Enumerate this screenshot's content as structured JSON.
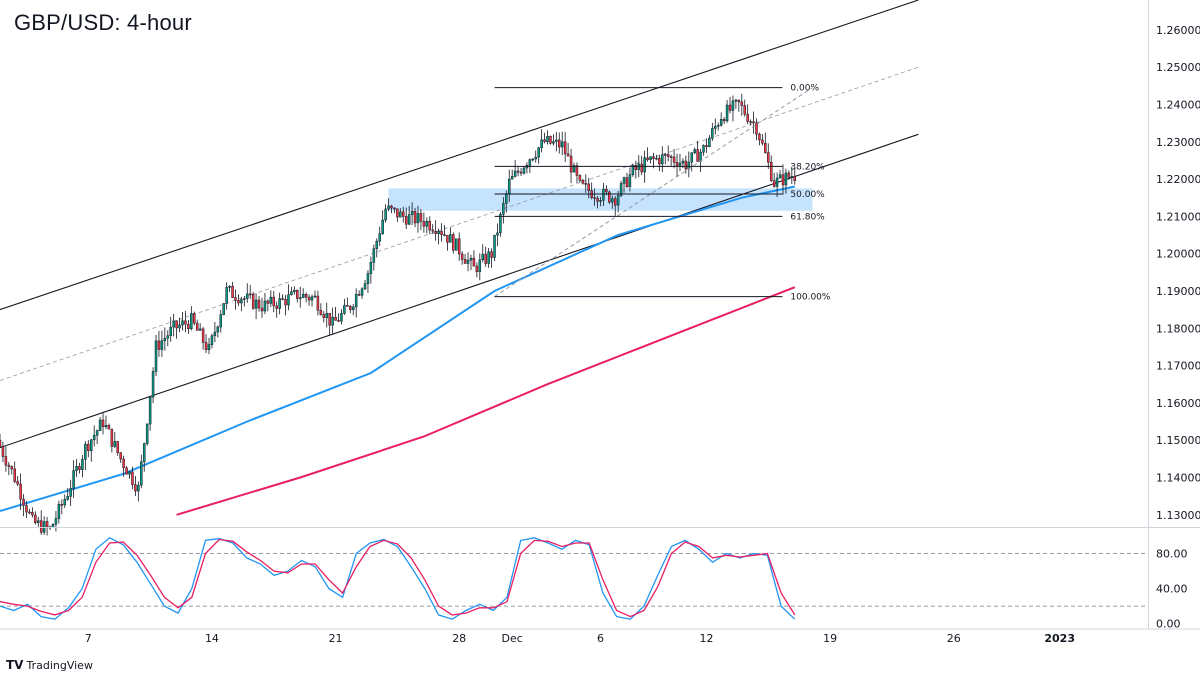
{
  "header": {
    "title": "GBP/USD: 4-hour"
  },
  "brand": {
    "logo": "TV",
    "name": "TradingView"
  },
  "colors": {
    "bull": "#089981",
    "bear": "#f23645",
    "ma_fast": "#2196f3",
    "ma_slow": "#e91e63",
    "stoch_k": "#2196f3",
    "stoch_d": "#e91e63",
    "zone": "#bbdefb",
    "channel": "#131722"
  },
  "chart_data": [
    {
      "type": "candlestick",
      "title": "GBP/USD: 4-hour",
      "ylim": [
        1.127,
        1.268
      ],
      "y_ticks": [
        "1.26000",
        "1.25000",
        "1.24000",
        "1.23000",
        "1.22000",
        "1.21000",
        "1.20000",
        "1.19000",
        "1.18000",
        "1.17000",
        "1.16000",
        "1.15000",
        "1.14000",
        "1.13000"
      ],
      "x_ticks": [
        {
          "label": "7",
          "date": "2022-11-07"
        },
        {
          "label": "14",
          "date": "2022-11-14"
        },
        {
          "label": "21",
          "date": "2022-11-21"
        },
        {
          "label": "28",
          "date": "2022-11-28"
        },
        {
          "label": "Dec",
          "date": "2022-12-01"
        },
        {
          "label": "6",
          "date": "2022-12-06"
        },
        {
          "label": "12",
          "date": "2022-12-12"
        },
        {
          "label": "19",
          "date": "2022-12-19"
        },
        {
          "label": "26",
          "date": "2022-12-26"
        },
        {
          "label": "2023",
          "date": "2023-01-01"
        }
      ],
      "xlim": [
        "2022-11-02",
        "2023-01-06"
      ],
      "price_path": [
        [
          "2022-11-02",
          1.15
        ],
        [
          "2022-11-03",
          1.14
        ],
        [
          "2022-11-04",
          1.128
        ],
        [
          "2022-11-05",
          1.126
        ],
        [
          "2022-11-06",
          1.136
        ],
        [
          "2022-11-07",
          1.148
        ],
        [
          "2022-11-08",
          1.155
        ],
        [
          "2022-11-09",
          1.145
        ],
        [
          "2022-11-10",
          1.137
        ],
        [
          "2022-11-11",
          1.175
        ],
        [
          "2022-11-12",
          1.18
        ],
        [
          "2022-11-13",
          1.182
        ],
        [
          "2022-11-14",
          1.174
        ],
        [
          "2022-11-15",
          1.19
        ],
        [
          "2022-11-16",
          1.188
        ],
        [
          "2022-11-17",
          1.186
        ],
        [
          "2022-11-18",
          1.187
        ],
        [
          "2022-11-19",
          1.189
        ],
        [
          "2022-11-20",
          1.188
        ],
        [
          "2022-11-21",
          1.181
        ],
        [
          "2022-11-22",
          1.186
        ],
        [
          "2022-11-23",
          1.195
        ],
        [
          "2022-11-24",
          1.212
        ],
        [
          "2022-11-25",
          1.21
        ],
        [
          "2022-11-26",
          1.209
        ],
        [
          "2022-11-27",
          1.207
        ],
        [
          "2022-11-28",
          1.202
        ],
        [
          "2022-11-29",
          1.196
        ],
        [
          "2022-11-30",
          1.2
        ],
        [
          "2022-12-01",
          1.219
        ],
        [
          "2022-12-02",
          1.225
        ],
        [
          "2022-12-03",
          1.23
        ],
        [
          "2022-12-04",
          1.229
        ],
        [
          "2022-12-05",
          1.218
        ],
        [
          "2022-12-06",
          1.216
        ],
        [
          "2022-12-07",
          1.215
        ],
        [
          "2022-12-08",
          1.222
        ],
        [
          "2022-12-09",
          1.225
        ],
        [
          "2022-12-10",
          1.226
        ],
        [
          "2022-12-11",
          1.224
        ],
        [
          "2022-12-12",
          1.228
        ],
        [
          "2022-12-13",
          1.237
        ],
        [
          "2022-12-14",
          1.24
        ],
        [
          "2022-12-15",
          1.234
        ],
        [
          "2022-12-16",
          1.219
        ],
        [
          "2022-12-17",
          1.221
        ]
      ],
      "moving_averages": [
        {
          "color": "#2196f3",
          "points": [
            [
              "2022-11-02",
              1.131
            ],
            [
              "2022-11-09",
              1.141
            ],
            [
              "2022-11-16",
              1.155
            ],
            [
              "2022-11-23",
              1.168
            ],
            [
              "2022-11-30",
              1.19
            ],
            [
              "2022-12-07",
              1.205
            ],
            [
              "2022-12-14",
              1.215
            ],
            [
              "2022-12-17",
              1.218
            ]
          ]
        },
        {
          "color": "#e91e63",
          "points": [
            [
              "2022-11-12",
              1.13
            ],
            [
              "2022-11-19",
              1.14
            ],
            [
              "2022-11-26",
              1.151
            ],
            [
              "2022-12-03",
              1.165
            ],
            [
              "2022-12-10",
              1.178
            ],
            [
              "2022-12-17",
              1.191
            ]
          ]
        }
      ],
      "channel": {
        "upper": [
          [
            "2022-11-02",
            1.185
          ],
          [
            "2022-12-24",
            1.268
          ]
        ],
        "mid": [
          [
            "2022-11-02",
            1.166
          ],
          [
            "2022-12-24",
            1.25
          ]
        ],
        "lower": [
          [
            "2022-11-02",
            1.148
          ],
          [
            "2022-12-24",
            1.232
          ]
        ]
      },
      "support_zone": {
        "x": [
          "2022-11-24",
          "2022-12-18"
        ],
        "y": [
          1.2115,
          1.2175
        ]
      },
      "fib_levels": [
        {
          "label": "0.00%",
          "value": 1.2445
        },
        {
          "label": "38.20%",
          "value": 1.2234
        },
        {
          "label": "50.00%",
          "value": 1.216
        },
        {
          "label": "61.80%",
          "value": 1.21
        },
        {
          "label": "100.00%",
          "value": 1.1885
        }
      ],
      "fib_range": {
        "x": [
          "2022-11-30",
          "2022-12-18"
        ],
        "anchor_low": [
          "2022-11-30",
          1.1885
        ],
        "anchor_high": [
          "2022-12-18",
          1.2445
        ]
      }
    },
    {
      "type": "line",
      "title": "",
      "ylim": [
        -5,
        108
      ],
      "y_ticks": [
        "80.00",
        "40.00",
        "0.00"
      ],
      "levels": [
        80,
        20
      ],
      "series": [
        {
          "color": "#2196f3",
          "values": [
            20,
            15,
            22,
            8,
            5,
            18,
            40,
            85,
            98,
            90,
            70,
            45,
            20,
            12,
            40,
            95,
            97,
            92,
            75,
            68,
            55,
            60,
            72,
            65,
            40,
            30,
            80,
            92,
            96,
            88,
            65,
            40,
            10,
            5,
            15,
            22,
            15,
            30,
            95,
            98,
            92,
            85,
            95,
            90,
            35,
            8,
            5,
            20,
            55,
            88,
            95,
            85,
            70,
            80,
            75,
            80,
            78,
            20,
            5
          ]
        },
        {
          "color": "#e91e63",
          "values": [
            25,
            22,
            20,
            14,
            10,
            15,
            30,
            70,
            92,
            93,
            78,
            55,
            30,
            18,
            30,
            80,
            96,
            94,
            82,
            72,
            60,
            58,
            68,
            68,
            50,
            35,
            65,
            88,
            95,
            91,
            75,
            50,
            20,
            10,
            12,
            18,
            18,
            25,
            80,
            95,
            94,
            88,
            92,
            92,
            50,
            15,
            8,
            15,
            42,
            80,
            93,
            88,
            75,
            78,
            76,
            78,
            80,
            35,
            10
          ]
        }
      ]
    }
  ]
}
